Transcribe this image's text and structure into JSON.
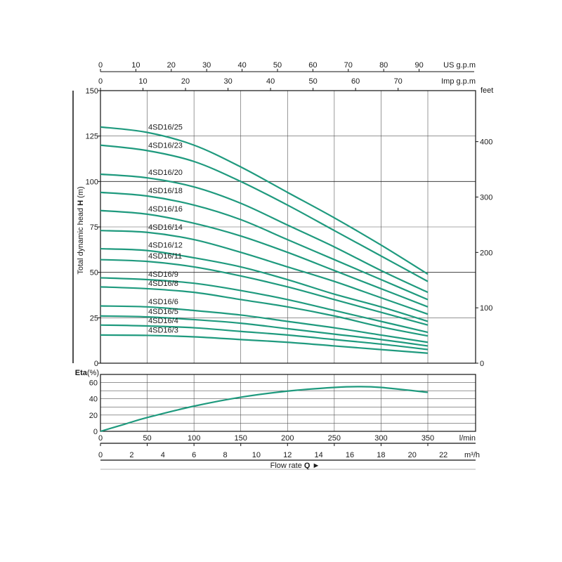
{
  "chart_data": [
    {
      "type": "line",
      "panel": "head",
      "ylabel": "Total dynamic head H (m)",
      "ylabel_parts": [
        "Total dynamic head ",
        "H",
        " (m)"
      ],
      "ylim": [
        0,
        150
      ],
      "yticks": [
        0,
        25,
        50,
        75,
        100,
        125,
        150
      ],
      "y2label": "feet",
      "y2ticks": [
        0,
        100,
        200,
        300,
        400
      ],
      "x_top1_unit": "US g.p.m",
      "x_top1_ticks": [
        0,
        10,
        20,
        30,
        40,
        50,
        60,
        70,
        80,
        90
      ],
      "x_top2_unit": "Imp g.p.m",
      "x_top2_ticks": [
        0,
        10,
        20,
        30,
        40,
        50,
        60,
        70
      ],
      "xunit": "l/min",
      "xlim": [
        0,
        400
      ],
      "grid": true,
      "series": [
        {
          "name": "4SD16/25",
          "x": [
            0,
            50,
            100,
            150,
            200,
            250,
            300,
            350
          ],
          "y": [
            130,
            127,
            120,
            108,
            94,
            80,
            65,
            49
          ]
        },
        {
          "name": "4SD16/23",
          "x": [
            0,
            50,
            100,
            150,
            200,
            250,
            300,
            350
          ],
          "y": [
            120,
            117,
            111,
            100,
            87,
            73,
            59,
            45
          ]
        },
        {
          "name": "4SD16/20",
          "x": [
            0,
            50,
            100,
            150,
            200,
            250,
            300,
            350
          ],
          "y": [
            104,
            102,
            97,
            88,
            76,
            64,
            51,
            39
          ]
        },
        {
          "name": "4SD16/18",
          "x": [
            0,
            50,
            100,
            150,
            200,
            250,
            300,
            350
          ],
          "y": [
            94,
            92,
            87,
            79,
            68,
            57,
            46,
            35
          ]
        },
        {
          "name": "4SD16/16",
          "x": [
            0,
            50,
            100,
            150,
            200,
            250,
            300,
            350
          ],
          "y": [
            84,
            82,
            77,
            70,
            61,
            51,
            41,
            31
          ]
        },
        {
          "name": "4SD16/14",
          "x": [
            0,
            50,
            100,
            150,
            200,
            250,
            300,
            350
          ],
          "y": [
            73,
            72,
            68,
            61,
            53,
            45,
            36,
            27
          ]
        },
        {
          "name": "4SD16/12",
          "x": [
            0,
            50,
            100,
            150,
            200,
            250,
            300,
            350
          ],
          "y": [
            63,
            62,
            58,
            53,
            46,
            38,
            31,
            23
          ]
        },
        {
          "name": "4SD16/11",
          "x": [
            0,
            50,
            100,
            150,
            200,
            250,
            300,
            350
          ],
          "y": [
            57,
            56,
            53,
            48,
            42,
            35,
            28,
            21
          ]
        },
        {
          "name": "4SD16/9",
          "x": [
            0,
            50,
            100,
            150,
            200,
            250,
            300,
            350
          ],
          "y": [
            47,
            46,
            44,
            40,
            35,
            29,
            23,
            17
          ]
        },
        {
          "name": "4SD16/8",
          "x": [
            0,
            50,
            100,
            150,
            200,
            250,
            300,
            350
          ],
          "y": [
            42,
            41,
            39,
            35,
            31,
            26,
            20,
            15
          ]
        },
        {
          "name": "4SD16/6",
          "x": [
            0,
            50,
            100,
            150,
            200,
            250,
            300,
            350
          ],
          "y": [
            31.5,
            31,
            29,
            26.5,
            23,
            19.5,
            15.5,
            11.5
          ]
        },
        {
          "name": "4SD16/5",
          "x": [
            0,
            50,
            100,
            150,
            200,
            250,
            300,
            350
          ],
          "y": [
            26,
            25.5,
            24,
            22,
            19,
            16,
            13,
            9.5
          ]
        },
        {
          "name": "4SD16/4",
          "x": [
            0,
            50,
            100,
            150,
            200,
            250,
            300,
            350
          ],
          "y": [
            21,
            20.5,
            19.5,
            17.5,
            15.5,
            13,
            10.5,
            7.5
          ]
        },
        {
          "name": "4SD16/3",
          "x": [
            0,
            50,
            100,
            150,
            200,
            250,
            300,
            350
          ],
          "y": [
            15.5,
            15.3,
            14.5,
            13,
            11.5,
            9.5,
            7.5,
            5.5
          ]
        }
      ]
    },
    {
      "type": "line",
      "panel": "efficiency",
      "ylabel": "Eta(%)",
      "ylabel_parts": [
        "Eta",
        "(%)"
      ],
      "ylim": [
        0,
        70
      ],
      "yticks": [
        0,
        20,
        40,
        60
      ],
      "xunit": "l/min",
      "xticks": [
        0,
        50,
        100,
        150,
        200,
        250,
        300,
        350
      ],
      "x2unit": "m³/h",
      "x2ticks": [
        0,
        2,
        4,
        6,
        8,
        10,
        12,
        14,
        16,
        18,
        20,
        22
      ],
      "xlabel": "Flow rate Q",
      "xlabel_parts": [
        "Flow rate ",
        "Q",
        " ►"
      ],
      "grid": true,
      "series": [
        {
          "x": [
            0,
            25,
            50,
            100,
            150,
            200,
            250,
            275,
            300,
            350
          ],
          "y": [
            0,
            8.5,
            17,
            31,
            42,
            49.5,
            54,
            55,
            54,
            48
          ]
        }
      ]
    }
  ],
  "colors": {
    "curve": "#1f9a7e",
    "frame": "#111111"
  }
}
